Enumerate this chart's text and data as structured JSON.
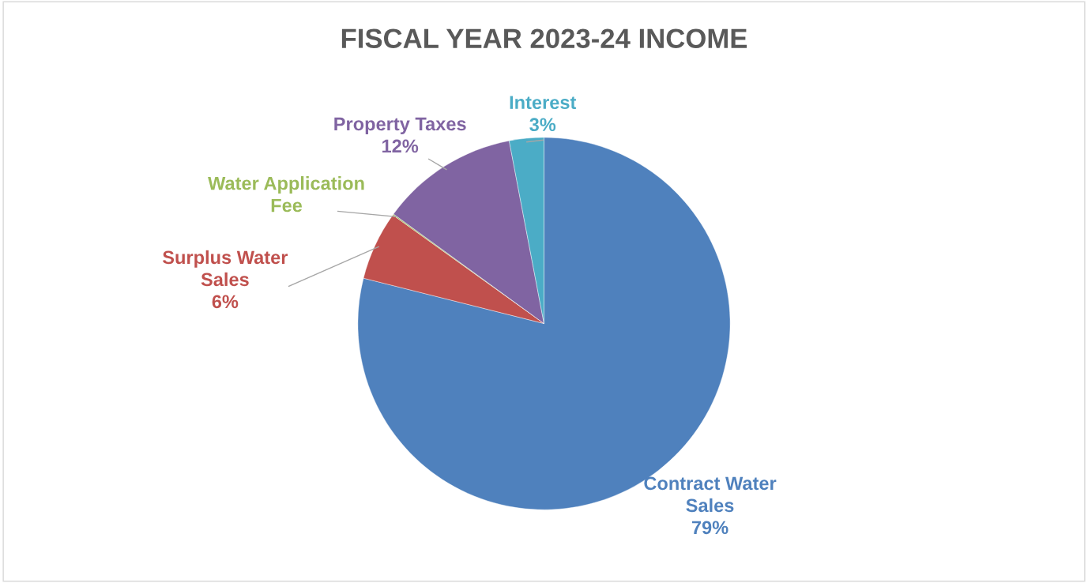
{
  "chart_data": {
    "type": "pie",
    "title": "FISCAL YEAR 2023-24 INCOME",
    "categories": [
      "Contract Water Sales",
      "Surplus Water Sales",
      "Water Application Fee",
      "Property Taxes",
      "Interest"
    ],
    "values": [
      79,
      6,
      0.1,
      12,
      3
    ],
    "value_labels": [
      "79%",
      "6%",
      null,
      "12%",
      "3%"
    ],
    "colors": [
      "#4f81bd",
      "#c0504d",
      "#9bbb59",
      "#8064a2",
      "#4bacc6"
    ],
    "legend": false
  }
}
